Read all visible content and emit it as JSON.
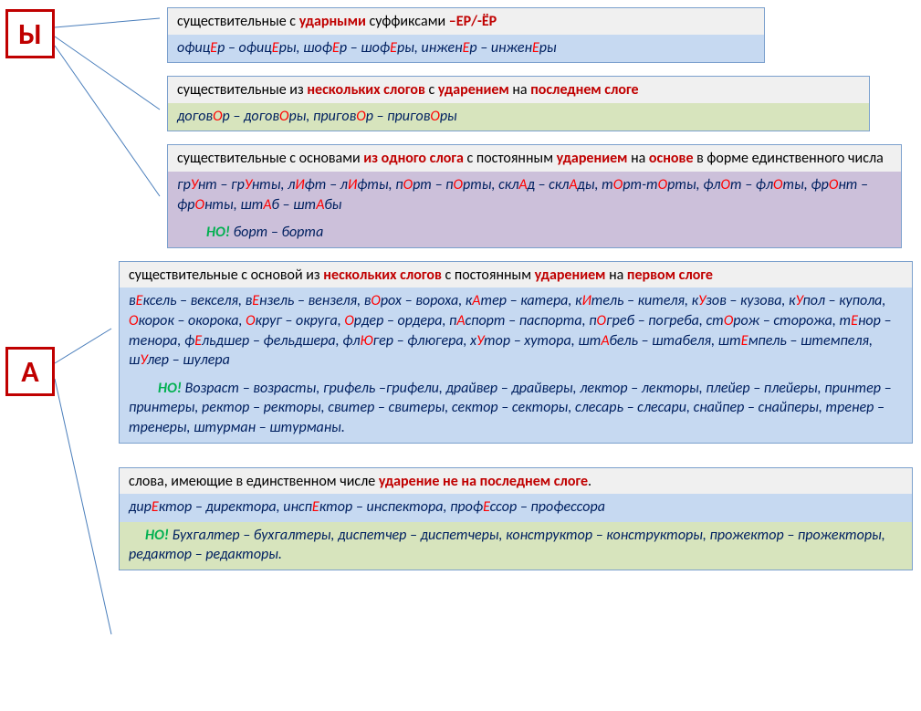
{
  "letters": {
    "y": "Ы",
    "a": "А"
  },
  "colors": {
    "red": "#c00000",
    "navy": "#002060",
    "green_but": "#00b050",
    "box_blue": "#c6d9f1",
    "box_green": "#d7e4bd",
    "box_purple": "#ccc0da",
    "border": "#7ba0cd",
    "connector": "#4a7ebb"
  },
  "rule1": {
    "t1": "существительные с ",
    "t2": "ударными",
    "t3": "  суффиксами ",
    "t4": "–ЕР/-ЁР",
    "ex": "офицЕр – офицЕры, шофЕр – шофЕры, инженЕр – инженЕры"
  },
  "rule2": {
    "t1": "существительные из ",
    "t2": "нескольких слогов",
    "t3": " с ",
    "t4": "ударением",
    "t5": " на ",
    "t6": "последнем слоге",
    "ex": "договОр – договОры, приговОр – приговОры"
  },
  "rule3": {
    "t1": "существительные с основами ",
    "t2": "из одного слога",
    "t3": " с постоянным ",
    "t4": "ударением",
    "t5": " на ",
    "t6": "основе",
    "t7": "  в форме единственного числа",
    "ex": "грУнт – грУнты, лИфт – лИфты, пОрт – пОрты, склАд – склАды, тОрт-тОрты, флОт – флОты, фрОнт – фрОнты, штАб – штАбы",
    "but_label": "НО! ",
    "but_ex": "борт – борта"
  },
  "rule4": {
    "t1": "существительные  с основой из ",
    "t2": "нескольких слогов",
    "t3": " с постоянным  ",
    "t4": "ударением",
    "t5": " на ",
    "t6": "первом слоге",
    "ex": "вЕксель – векселя, вЕнзель – вензеля, вОрох – вороха, кАтер – катера, кИтель – кителя, кУзов – кузова,  кУпол – купола, Окорок – окорока, Округ – округа, Ордер – ордера,   пАспорт – паспорта, пОгреб – погреба, стОрож – сторожа, тЕнор – тенора, фЕльдшер – фельдшера, флЮгер – флюгера, хУтор – хутора, штАбель – штабеля, штЕмпель – штемпеля, шУлер – шулера",
    "but_label": "НО! ",
    "but_ex": "Возраст – возрасты,  грифель –грифели, драйвер – драйверы, лектор – лекторы, плейер – плейеры,  принтер – принтеры,   ректор – ректоры, свитер – свитеры,  сектор  – секторы,  слесарь – слесари,  снайпер – снайперы, тренер – тренеры, штурман – штурманы."
  },
  "rule5": {
    "t1": "слова, имеющие  в единственном числе ",
    "t2": "ударение не на последнем слоге",
    "t3": ".",
    "ex": "дирЕктор – директора, инспЕктор – инспектора, профЕссор – профессора",
    "but_label": "НО! ",
    "but_ex": "Бухгалтер – бухгалтеры,  диспетчер – диспетчеры,  конструктор – конструкторы, прожектор – прожекторы,  редактор – редакторы."
  }
}
